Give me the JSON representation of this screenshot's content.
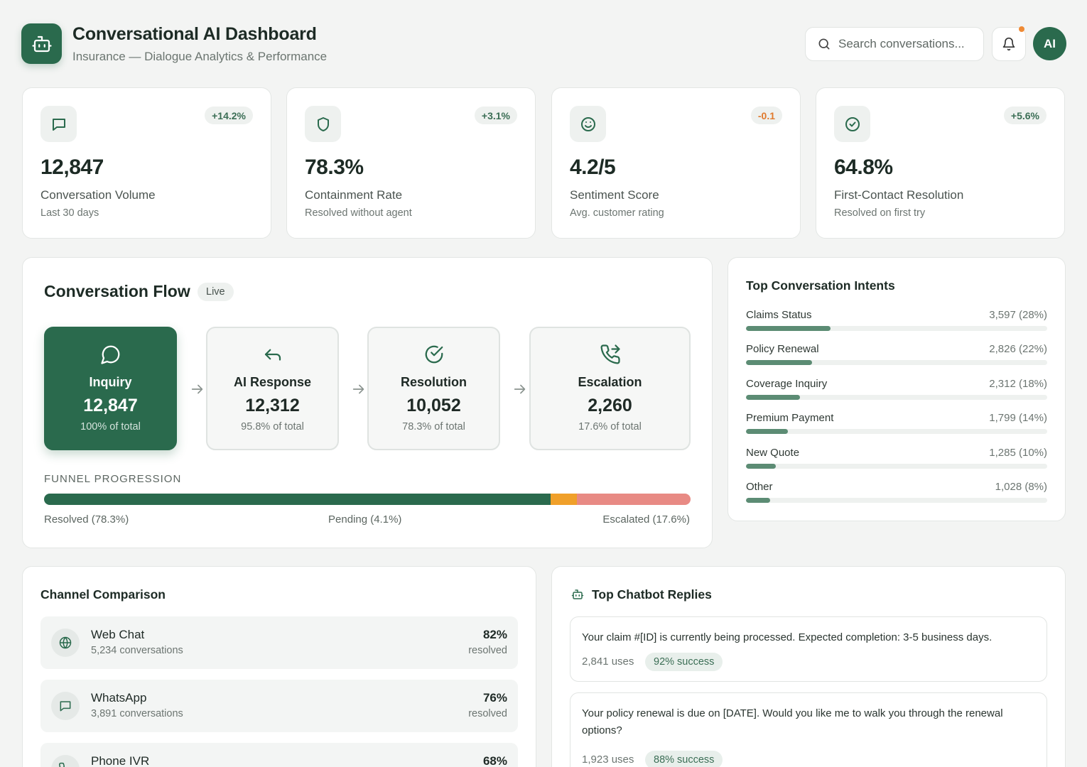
{
  "header": {
    "title": "Conversational AI Dashboard",
    "subtitle": "Insurance — Dialogue Analytics & Performance",
    "search_placeholder": "Search conversations...",
    "avatar_initials": "AI"
  },
  "kpis": [
    {
      "value": "12,847",
      "label": "Conversation Volume",
      "sub": "Last 30 days",
      "delta": "+14.2%",
      "icon": "message-icon"
    },
    {
      "value": "78.3%",
      "label": "Containment Rate",
      "sub": "Resolved without agent",
      "delta": "+3.1%",
      "icon": "shield-icon"
    },
    {
      "value": "4.2/5",
      "label": "Sentiment Score",
      "sub": "Avg. customer rating",
      "delta": "-0.1",
      "icon": "smile-icon"
    },
    {
      "value": "64.8%",
      "label": "First-Contact Resolution",
      "sub": "Resolved on first try",
      "delta": "+5.6%",
      "icon": "check-circle-icon"
    }
  ],
  "flow": {
    "title": "Conversation Flow",
    "badge": "Live",
    "stages": [
      {
        "name": "Inquiry",
        "value": "12,847",
        "pct": "100% of total"
      },
      {
        "name": "AI Response",
        "value": "12,312",
        "pct": "95.8% of total"
      },
      {
        "name": "Resolution",
        "value": "10,052",
        "pct": "78.3% of total"
      },
      {
        "name": "Escalation",
        "value": "2,260",
        "pct": "17.6% of total"
      }
    ],
    "funnel_label": "FUNNEL PROGRESSION",
    "funnel": {
      "resolved": 78.3,
      "pending": 4.1,
      "escalated": 17.6
    },
    "legend": {
      "resolved": "Resolved (78.3%)",
      "pending": "Pending (4.1%)",
      "escalated": "Escalated (17.6%)"
    }
  },
  "intents": {
    "title": "Top Conversation Intents",
    "items": [
      {
        "name": "Claims Status",
        "value": "3,597 (28%)",
        "fraction": 0.28
      },
      {
        "name": "Policy Renewal",
        "value": "2,826 (22%)",
        "fraction": 0.22
      },
      {
        "name": "Coverage Inquiry",
        "value": "2,312 (18%)",
        "fraction": 0.18
      },
      {
        "name": "Premium Payment",
        "value": "1,799 (14%)",
        "fraction": 0.14
      },
      {
        "name": "New Quote",
        "value": "1,285 (10%)",
        "fraction": 0.1
      },
      {
        "name": "Other",
        "value": "1,028 (8%)",
        "fraction": 0.08
      }
    ]
  },
  "channels": {
    "title": "Channel Comparison",
    "items": [
      {
        "name": "Web Chat",
        "sub": "5,234 conversations",
        "pct": "82%",
        "resolved": "resolved",
        "icon": "globe-icon"
      },
      {
        "name": "WhatsApp",
        "sub": "3,891 conversations",
        "pct": "76%",
        "resolved": "resolved",
        "icon": "message-icon"
      },
      {
        "name": "Phone IVR",
        "sub": "",
        "pct": "68%",
        "resolved": "",
        "icon": "phone-icon"
      }
    ]
  },
  "replies": {
    "title": "Top Chatbot Replies",
    "items": [
      {
        "text": "Your claim #[ID] is currently being processed. Expected completion: 3-5 business days.",
        "uses": "2,841 uses",
        "success": "92% success"
      },
      {
        "text": "Your policy renewal is due on [DATE]. Would you like me to walk you through the renewal options?",
        "uses": "1,923 uses",
        "success": "88% success"
      }
    ]
  },
  "colors": {
    "brand": "#2a6a4d",
    "pending": "#f0a02a",
    "escalated": "#e88a84",
    "negative": "#e07a2e"
  }
}
